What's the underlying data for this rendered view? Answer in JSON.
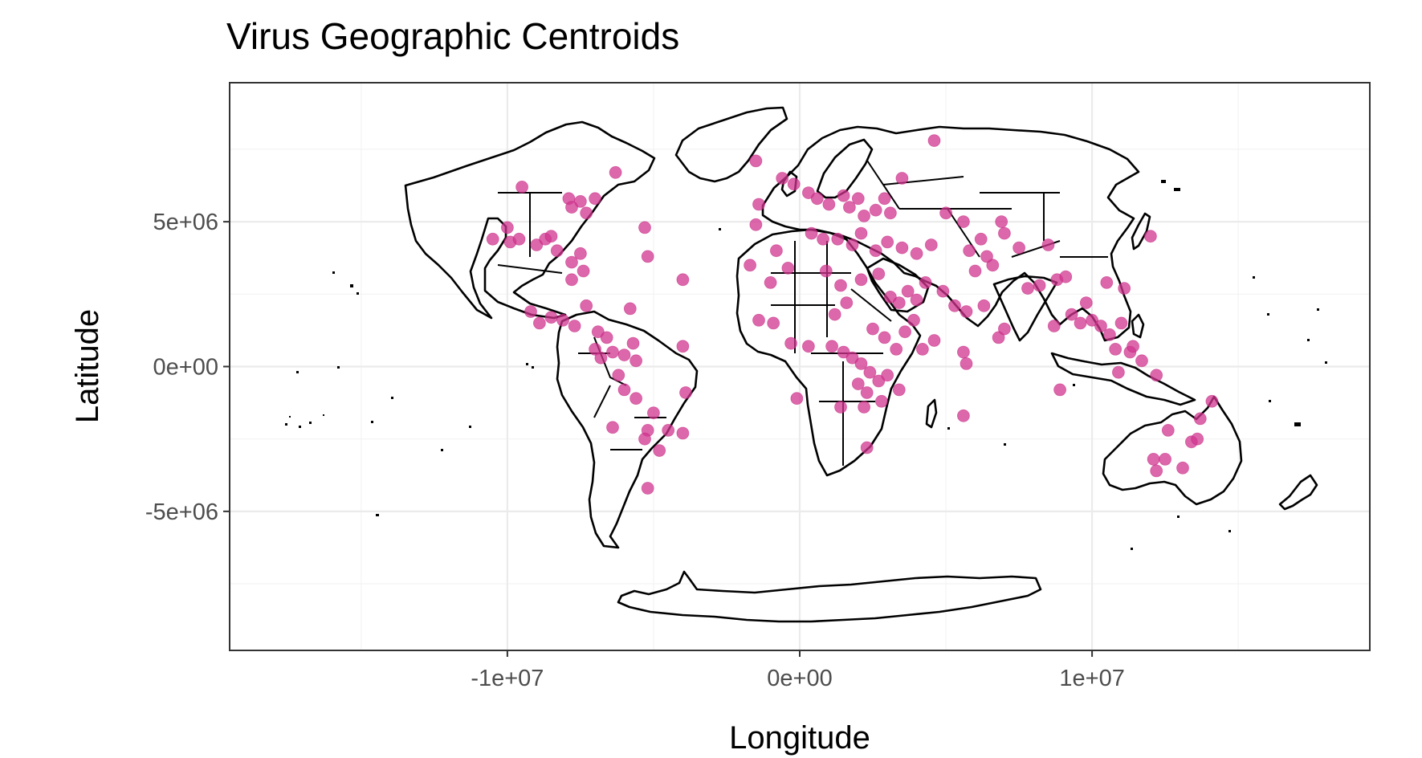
{
  "chart_data": {
    "type": "scatter",
    "title": "Virus Geographic Centroids",
    "xlabel": "Longitude",
    "ylabel": "Latitude",
    "xlim": [
      -19500000.0,
      19500000.0
    ],
    "ylim": [
      -9800000.0,
      9800000.0
    ],
    "x_ticks": [
      -10000000.0,
      0,
      10000000.0
    ],
    "x_tick_labels": [
      "-1e+07",
      "0e+00",
      "1e+07"
    ],
    "y_ticks": [
      5000000.0,
      0,
      -5000000.0
    ],
    "y_tick_labels": [
      "5e+06",
      "0e+00",
      "-5e+06"
    ],
    "grid": true,
    "point_color": "#d0368f",
    "points": [
      [
        -9500000.0,
        6200000.0
      ],
      [
        -7900000.0,
        5800000.0
      ],
      [
        -7500000.0,
        5700000.0
      ],
      [
        -7000000.0,
        5800000.0
      ],
      [
        -7800000.0,
        5500000.0
      ],
      [
        -7300000.0,
        5300000.0
      ],
      [
        -6300000.0,
        6700000.0
      ],
      [
        -5300000.0,
        4800000.0
      ],
      [
        -4000000.0,
        3000000.0
      ],
      [
        -5200000.0,
        3800000.0
      ],
      [
        -10500000.0,
        4400000.0
      ],
      [
        -10000000.0,
        4800000.0
      ],
      [
        -9900000.0,
        4300000.0
      ],
      [
        -9600000.0,
        4400000.0
      ],
      [
        -9000000.0,
        4200000.0
      ],
      [
        -8700000.0,
        4400000.0
      ],
      [
        -8300000.0,
        4000000.0
      ],
      [
        -8500000.0,
        4500000.0
      ],
      [
        -7800000.0,
        3600000.0
      ],
      [
        -7500000.0,
        3900000.0
      ],
      [
        -7400000.0,
        3300000.0
      ],
      [
        -7800000.0,
        3000000.0
      ],
      [
        -9200000.0,
        1900000.0
      ],
      [
        -8900000.0,
        1500000.0
      ],
      [
        -8500000.0,
        1700000.0
      ],
      [
        -8100000.0,
        1600000.0
      ],
      [
        -7700000.0,
        1400000.0
      ],
      [
        -7300000.0,
        2100000.0
      ],
      [
        -6900000.0,
        1200000.0
      ],
      [
        -6600000.0,
        1000000.0
      ],
      [
        -7000000.0,
        600000.0
      ],
      [
        -6800000.0,
        300000.0
      ],
      [
        -6400000.0,
        500000.0
      ],
      [
        -6000000.0,
        400000.0
      ],
      [
        -5700000.0,
        800000.0
      ],
      [
        -5600000.0,
        200000.0
      ],
      [
        -6200000.0,
        -300000.0
      ],
      [
        -6000000.0,
        -800000.0
      ],
      [
        -5600000.0,
        -1100000.0
      ],
      [
        -5000000.0,
        -1600000.0
      ],
      [
        -6400000.0,
        -2100000.0
      ],
      [
        -5200000.0,
        -2200000.0
      ],
      [
        -4800000.0,
        -2900000.0
      ],
      [
        -4500000.0,
        -2200000.0
      ],
      [
        -4000000.0,
        -2300000.0
      ],
      [
        -3900000.0,
        -900000.0
      ],
      [
        -4000000.0,
        700000.0
      ],
      [
        -5800000.0,
        2000000.0
      ],
      [
        -5300000.0,
        -2500000.0
      ],
      [
        -5200000.0,
        -4200000.0
      ],
      [
        -1500000.0,
        7100000.0
      ],
      [
        -600000.0,
        6500000.0
      ],
      [
        -200000.0,
        6300000.0
      ],
      [
        300000.0,
        6000000.0
      ],
      [
        600000.0,
        5800000.0
      ],
      [
        1000000.0,
        5600000.0
      ],
      [
        1500000.0,
        5900000.0
      ],
      [
        1700000.0,
        5500000.0
      ],
      [
        2000000.0,
        5800000.0
      ],
      [
        2200000.0,
        5200000.0
      ],
      [
        2600000.0,
        5400000.0
      ],
      [
        2900000.0,
        5800000.0
      ],
      [
        3100000.0,
        5300000.0
      ],
      [
        3500000.0,
        6500000.0
      ],
      [
        4600000.0,
        7800000.0
      ],
      [
        -1400000.0,
        5600000.0
      ],
      [
        -1500000.0,
        4900000.0
      ],
      [
        -800000.0,
        4000000.0
      ],
      [
        400000.0,
        4600000.0
      ],
      [
        800000.0,
        4400000.0
      ],
      [
        1300000.0,
        4400000.0
      ],
      [
        1800000.0,
        4200000.0
      ],
      [
        2100000.0,
        4600000.0
      ],
      [
        2600000.0,
        4000000.0
      ],
      [
        3000000.0,
        4300000.0
      ],
      [
        3500000.0,
        4100000.0
      ],
      [
        4000000.0,
        3900000.0
      ],
      [
        4500000.0,
        4200000.0
      ],
      [
        5000000.0,
        5300000.0
      ],
      [
        5600000.0,
        5000000.0
      ],
      [
        5800000.0,
        4000000.0
      ],
      [
        6200000.0,
        4400000.0
      ],
      [
        6600000.0,
        3500000.0
      ],
      [
        7000000.0,
        4600000.0
      ],
      [
        7500000.0,
        4100000.0
      ],
      [
        6400000.0,
        3800000.0
      ],
      [
        6000000.0,
        3300000.0
      ],
      [
        -1700000.0,
        3500000.0
      ],
      [
        -1000000.0,
        2900000.0
      ],
      [
        -400000.0,
        3400000.0
      ],
      [
        900000.0,
        3300000.0
      ],
      [
        1400000.0,
        2800000.0
      ],
      [
        2100000.0,
        3000000.0
      ],
      [
        2700000.0,
        3200000.0
      ],
      [
        3100000.0,
        2400000.0
      ],
      [
        3400000.0,
        2200000.0
      ],
      [
        3700000.0,
        2600000.0
      ],
      [
        4000000.0,
        2300000.0
      ],
      [
        4300000.0,
        2900000.0
      ],
      [
        4900000.0,
        2600000.0
      ],
      [
        5300000.0,
        2100000.0
      ],
      [
        5700000.0,
        1900000.0
      ],
      [
        6300000.0,
        2100000.0
      ],
      [
        -1400000.0,
        1600000.0
      ],
      [
        -900000.0,
        1500000.0
      ],
      [
        -300000.0,
        800000.0
      ],
      [
        300000.0,
        700000.0
      ],
      [
        1100000.0,
        700000.0
      ],
      [
        1500000.0,
        500000.0
      ],
      [
        1800000.0,
        300000.0
      ],
      [
        2100000.0,
        100000.0
      ],
      [
        2400000.0,
        -200000.0
      ],
      [
        2000000.0,
        -600000.0
      ],
      [
        2300000.0,
        -900000.0
      ],
      [
        2700000.0,
        -500000.0
      ],
      [
        3000000.0,
        -300000.0
      ],
      [
        3300000.0,
        600000.0
      ],
      [
        3600000.0,
        1200000.0
      ],
      [
        3900000.0,
        1600000.0
      ],
      [
        4200000.0,
        600000.0
      ],
      [
        4600000.0,
        900000.0
      ],
      [
        1200000.0,
        1800000.0
      ],
      [
        1600000.0,
        2200000.0
      ],
      [
        2500000.0,
        1300000.0
      ],
      [
        2900000.0,
        1000000.0
      ],
      [
        3400000.0,
        -800000.0
      ],
      [
        2800000.0,
        -1200000.0
      ],
      [
        2200000.0,
        -1400000.0
      ],
      [
        1400000.0,
        -1400000.0
      ],
      [
        -100000.0,
        -1100000.0
      ],
      [
        2300000.0,
        -2800000.0
      ],
      [
        5600000.0,
        500000.0
      ],
      [
        5700000.0,
        100000.0
      ],
      [
        5600000.0,
        -1700000.0
      ],
      [
        6800000.0,
        1000000.0
      ],
      [
        7000000.0,
        1300000.0
      ],
      [
        7800000.0,
        2700000.0
      ],
      [
        8200000.0,
        2800000.0
      ],
      [
        8800000.0,
        3000000.0
      ],
      [
        9300000.0,
        1800000.0
      ],
      [
        9800000.0,
        2200000.0
      ],
      [
        10000000.0,
        1600000.0
      ],
      [
        10300000.0,
        1400000.0
      ],
      [
        10600000.0,
        1100000.0
      ],
      [
        11000000.0,
        1500000.0
      ],
      [
        10800000.0,
        600000.0
      ],
      [
        11300000.0,
        500000.0
      ],
      [
        11700000.0,
        200000.0
      ],
      [
        12200000.0,
        -300000.0
      ],
      [
        9100000.0,
        3100000.0
      ],
      [
        10500000.0,
        2900000.0
      ],
      [
        11100000.0,
        2700000.0
      ],
      [
        8900000.0,
        -800000.0
      ],
      [
        9600000.0,
        1500000.0
      ],
      [
        8700000.0,
        1400000.0
      ],
      [
        12000000.0,
        4500000.0
      ],
      [
        11400000.0,
        700000.0
      ],
      [
        10900000.0,
        -200000.0
      ],
      [
        14100000.0,
        -1200000.0
      ],
      [
        13700000.0,
        -1800000.0
      ],
      [
        12600000.0,
        -2200000.0
      ],
      [
        13400000.0,
        -2600000.0
      ],
      [
        12100000.0,
        -3200000.0
      ],
      [
        12500000.0,
        -3200000.0
      ],
      [
        12200000.0,
        -3600000.0
      ],
      [
        13100000.0,
        -3500000.0
      ],
      [
        13600000.0,
        -2500000.0
      ],
      [
        8500000.0,
        4200000.0
      ],
      [
        6900000.0,
        5000000.0
      ]
    ]
  }
}
